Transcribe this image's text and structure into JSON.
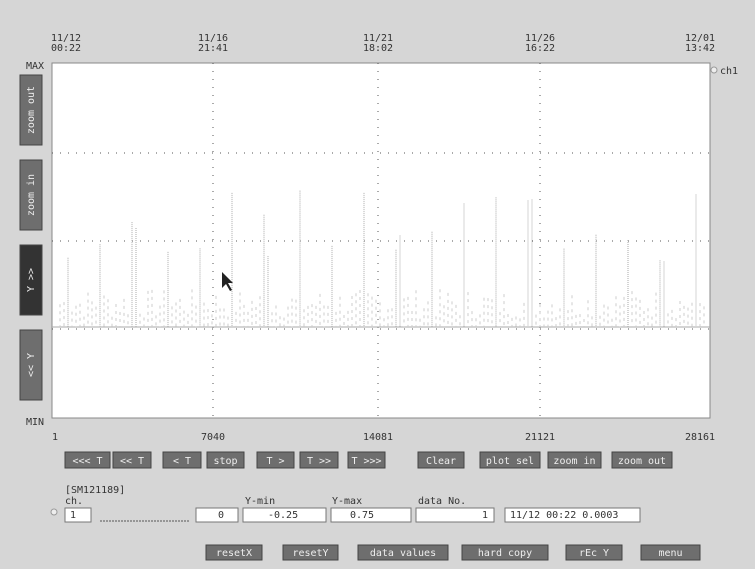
{
  "time_axis": {
    "labels": [
      {
        "date": "11/12",
        "time": "00:22"
      },
      {
        "date": "11/16",
        "time": "21:41"
      },
      {
        "date": "11/21",
        "time": "18:02"
      },
      {
        "date": "11/26",
        "time": "16:22"
      },
      {
        "date": "12/01",
        "time": "13:42"
      }
    ]
  },
  "y_axis": {
    "max": "MAX",
    "min": "MIN"
  },
  "channel_legend": "ch1",
  "side_buttons": [
    "zoom out",
    "zoom in",
    "Y >>",
    "<< Y"
  ],
  "sample_axis": [
    "1",
    "7040",
    "14081",
    "21121",
    "28161"
  ],
  "control_buttons": [
    "<<< T",
    "<< T",
    "< T",
    "stop",
    "T >",
    "T >>",
    "T >>>",
    "Clear",
    "plot sel",
    "zoom in",
    "zoom out"
  ],
  "info": {
    "file": "[SM121189]",
    "ch_label": "ch.",
    "ch": "1",
    "offset": "0",
    "ymin_label": "Y-min",
    "ymin": "-0.25",
    "ymax_label": "Y-max",
    "ymax": "0.75",
    "data_no_label": "data No.",
    "data_no": "1",
    "readout": "11/12 00:22  0.0003"
  },
  "bottom_buttons": [
    "resetX",
    "resetY",
    "data values",
    "hard copy",
    "rEc Y",
    "menu"
  ]
}
